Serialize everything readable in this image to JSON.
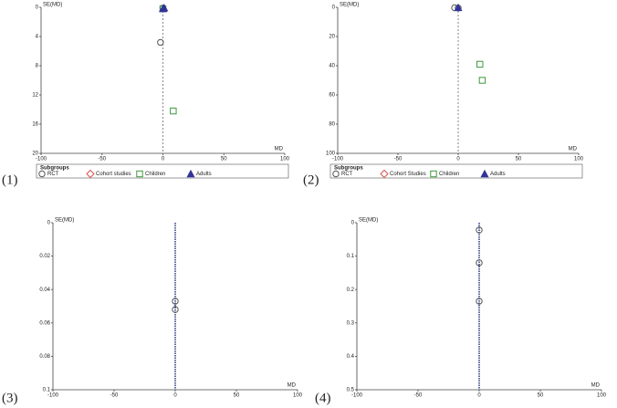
{
  "chart_data": [
    {
      "type": "scatter",
      "label": "(1)",
      "y_label": "SE(MD)",
      "x_label": "MD",
      "xlim": [
        -100,
        100
      ],
      "xticks": [
        -100,
        -50,
        0,
        50,
        100
      ],
      "ylim": [
        0,
        20
      ],
      "yticks": [
        0,
        4,
        8,
        12,
        16,
        20
      ],
      "y_reversed": true,
      "reference_line": 0,
      "legend_title": "Subgroups",
      "series": [
        {
          "name": "RCT",
          "color": "#555555",
          "marker": "circle",
          "x": [
            0,
            -2
          ],
          "values": [
            0.1,
            4.8
          ]
        },
        {
          "name": "Cohort studies",
          "color": "#d9534f",
          "marker": "diamond",
          "x": [],
          "values": []
        },
        {
          "name": "Children",
          "color": "#3a9a3a",
          "marker": "square",
          "x": [
            0,
            8.5
          ],
          "values": [
            0.2,
            14.2
          ]
        },
        {
          "name": "Adults",
          "color": "#333399",
          "marker": "triangle",
          "x": [
            1,
            0
          ],
          "values": [
            0.1,
            0.2
          ]
        }
      ]
    },
    {
      "type": "scatter",
      "label": "(2)",
      "y_label": "SE(MD)",
      "x_label": "MD",
      "xlim": [
        -100,
        100
      ],
      "xticks": [
        -100,
        -50,
        0,
        50,
        100
      ],
      "ylim": [
        0,
        100
      ],
      "yticks": [
        0,
        20,
        40,
        60,
        80,
        100
      ],
      "y_reversed": true,
      "reference_line": 0,
      "legend_title": "Subgroups",
      "series": [
        {
          "name": "RCT",
          "color": "#555555",
          "marker": "circle",
          "x": [
            -3,
            0
          ],
          "values": [
            0.3,
            0.5
          ]
        },
        {
          "name": "Cohort Studies",
          "color": "#d9534f",
          "marker": "diamond",
          "x": [],
          "values": []
        },
        {
          "name": "Children",
          "color": "#3a9a3a",
          "marker": "square",
          "x": [
            18,
            20
          ],
          "values": [
            39,
            50
          ]
        },
        {
          "name": "Adults",
          "color": "#333399",
          "marker": "triangle",
          "x": [
            0
          ],
          "values": [
            0.3
          ]
        }
      ]
    },
    {
      "type": "scatter",
      "label": "(3)",
      "y_label": "SE(MD)",
      "x_label": "MD",
      "xlim": [
        -100,
        100
      ],
      "xticks": [
        -100,
        -50,
        0,
        50,
        100
      ],
      "ylim": [
        0,
        0.1
      ],
      "yticks": [
        0,
        0.02,
        0.04,
        0.06,
        0.08,
        0.1
      ],
      "y_reversed": true,
      "reference_line": 0,
      "series": [
        {
          "color": "#555555",
          "marker": "circle",
          "x": [
            0,
            0
          ],
          "values": [
            0.047,
            0.052
          ]
        }
      ]
    },
    {
      "type": "scatter",
      "label": "(4)",
      "y_label": "SE(MD)",
      "x_label": "MD",
      "xlim": [
        -100,
        100
      ],
      "xticks": [
        -100,
        -50,
        0,
        50,
        100
      ],
      "ylim": [
        0,
        0.5
      ],
      "yticks": [
        0,
        0.1,
        0.2,
        0.3,
        0.4,
        0.5
      ],
      "y_reversed": true,
      "reference_line": 0,
      "series": [
        {
          "color": "#555555",
          "marker": "circle",
          "x": [
            0,
            0,
            0
          ],
          "values": [
            0.022,
            0.12,
            0.235
          ]
        }
      ]
    }
  ]
}
